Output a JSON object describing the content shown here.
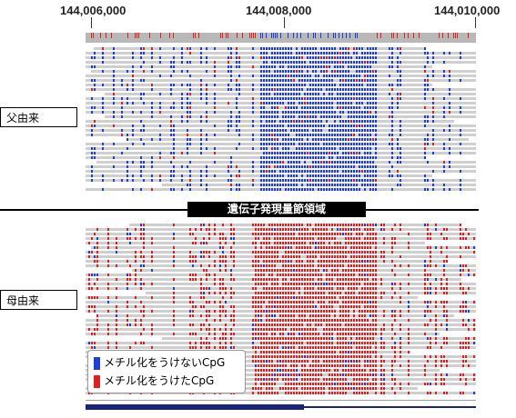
{
  "axis": {
    "ticks": [
      "144,006,000",
      "144,008,000",
      "144,010,000"
    ]
  },
  "labels": {
    "paternal": "父由来",
    "maternal": "母由来",
    "region": "遺伝子発現量節領域"
  },
  "legend": {
    "unmethylated": "メチル化をうけないCpG",
    "methylated": "メチル化をうけたCpG"
  },
  "colors": {
    "unmethylated": "#1f3fd8",
    "methylated": "#e02020",
    "read_background": "#cfcfcf",
    "banner": "#000000"
  },
  "icons": {
    "unmethylated_swatch": "blue-square-icon",
    "methylated_swatch": "red-square-icon"
  }
}
